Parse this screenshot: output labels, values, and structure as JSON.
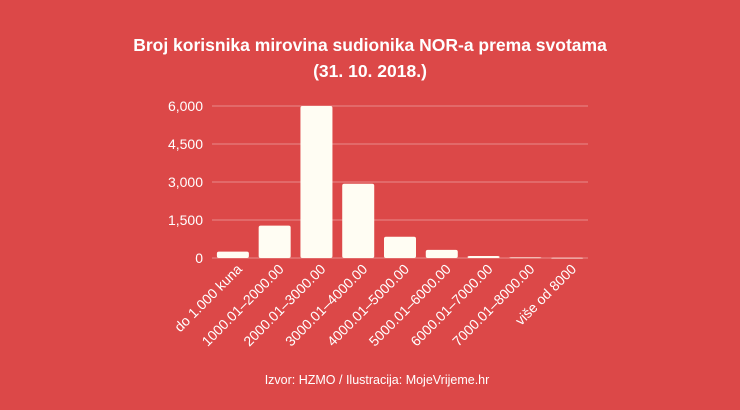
{
  "chart_data": {
    "type": "bar",
    "title": "Broj korisnika mirovina sudionika NOR-a prema svotama (31. 10. 2018.)",
    "xlabel": "",
    "ylabel": "",
    "categories": [
      "do 1.000 kuna",
      "1000.01–2000.00",
      "2000.01–3000.00",
      "3000.01–4000.00",
      "4000.01–5000.00",
      "5000.01–6000.00",
      "6000.01–7000.00",
      "7000.01–8000.00",
      "više od 8000"
    ],
    "values": [
      250,
      1280,
      6000,
      2930,
      840,
      320,
      80,
      25,
      10
    ],
    "ylim": [
      0,
      6000
    ],
    "yticks": [
      "0",
      "1,500",
      "3,000",
      "4,500",
      "6,000"
    ],
    "ytick_values": [
      0,
      1500,
      3000,
      4500,
      6000
    ],
    "grid": true,
    "legend": "none",
    "colors": {
      "background": "#dc4848",
      "bar": "#fffdf3",
      "grid": "#e98a8a",
      "text": "#ffffff"
    }
  },
  "source": "Izvor: HZMO / Ilustracija: MojeVrijeme.hr"
}
